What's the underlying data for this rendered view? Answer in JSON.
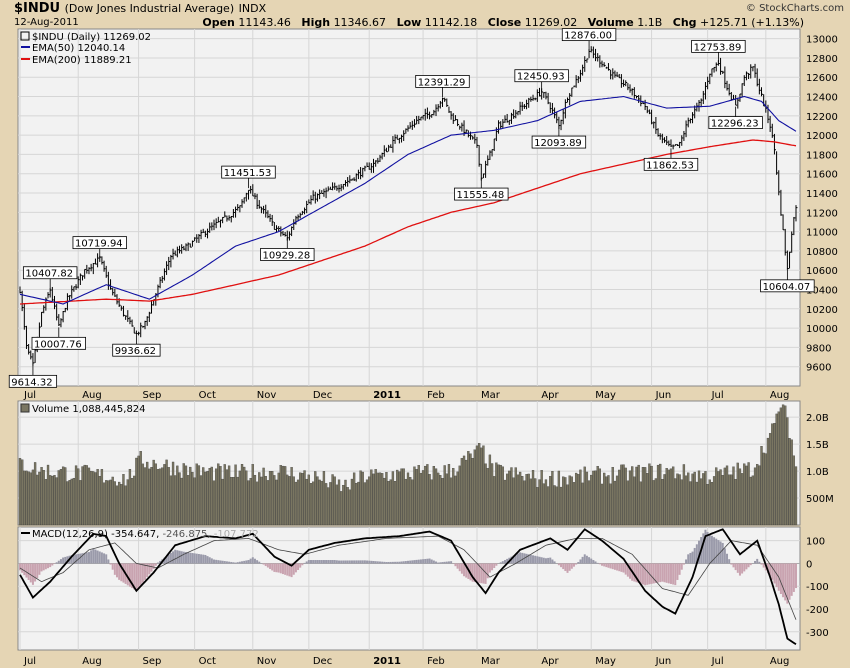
{
  "header": {
    "symbol": "$INDU",
    "name": "(Dow Jones Industrial Average)",
    "exchange": "INDX",
    "date": "12-Aug-2011",
    "brand": "© StockCharts.com",
    "open_label": "Open",
    "open": "11143.46",
    "high_label": "High",
    "high": "11346.67",
    "low_label": "Low",
    "low": "11142.18",
    "close_label": "Close",
    "close": "11269.02",
    "volume_label": "Volume",
    "volume": "1.1B",
    "chg_label": "Chg",
    "chg": "+125.71 (+1.13%)"
  },
  "colors": {
    "background": "#e5d5b4",
    "panel": "#f2f2f2",
    "ema50": "#1010a0",
    "ema200": "#e01010",
    "volume": "#7a7662",
    "macd_hist": "#c9a3b0",
    "macd_hist_pos": "#9a9aaa"
  },
  "chart_data": [
    {
      "type": "line",
      "panel": "price",
      "legend": [
        "$INDU (Daily) 11269.02",
        "EMA(50) 12040.14",
        "EMA(200) 11889.21"
      ],
      "ylim": [
        9400,
        13100
      ],
      "yticks": [
        9600,
        9800,
        10000,
        10200,
        10400,
        10600,
        10800,
        11000,
        11200,
        11400,
        11600,
        11800,
        12000,
        12200,
        12400,
        12600,
        12800,
        13000
      ],
      "xticks": [
        "Jul",
        "Aug",
        "Sep",
        "Oct",
        "Nov",
        "Dec",
        "2011",
        "Feb",
        "Mar",
        "Apr",
        "May",
        "Jun",
        "Jul",
        "Aug"
      ],
      "price_anchors": [
        [
          0,
          10400
        ],
        [
          3,
          9800
        ],
        [
          6,
          9614
        ],
        [
          10,
          10150
        ],
        [
          14,
          10400
        ],
        [
          18,
          10008
        ],
        [
          22,
          10300
        ],
        [
          30,
          10600
        ],
        [
          37,
          10720
        ],
        [
          42,
          10400
        ],
        [
          48,
          10150
        ],
        [
          54,
          9937
        ],
        [
          58,
          10050
        ],
        [
          62,
          10300
        ],
        [
          70,
          10750
        ],
        [
          78,
          10850
        ],
        [
          86,
          11000
        ],
        [
          96,
          11150
        ],
        [
          102,
          11250
        ],
        [
          106,
          11451
        ],
        [
          110,
          11300
        ],
        [
          118,
          11050
        ],
        [
          124,
          10929
        ],
        [
          128,
          11150
        ],
        [
          136,
          11350
        ],
        [
          146,
          11450
        ],
        [
          154,
          11550
        ],
        [
          164,
          11700
        ],
        [
          174,
          11950
        ],
        [
          184,
          12150
        ],
        [
          192,
          12250
        ],
        [
          196,
          12391
        ],
        [
          200,
          12200
        ],
        [
          206,
          12050
        ],
        [
          212,
          11900
        ],
        [
          214,
          11555
        ],
        [
          218,
          11800
        ],
        [
          222,
          12100
        ],
        [
          228,
          12200
        ],
        [
          236,
          12350
        ],
        [
          242,
          12450
        ],
        [
          246,
          12300
        ],
        [
          250,
          12094
        ],
        [
          254,
          12400
        ],
        [
          260,
          12650
        ],
        [
          264,
          12876
        ],
        [
          270,
          12750
        ],
        [
          276,
          12600
        ],
        [
          282,
          12500
        ],
        [
          290,
          12300
        ],
        [
          296,
          12000
        ],
        [
          302,
          11863
        ],
        [
          306,
          11900
        ],
        [
          310,
          12150
        ],
        [
          316,
          12350
        ],
        [
          320,
          12650
        ],
        [
          324,
          12754
        ],
        [
          328,
          12500
        ],
        [
          332,
          12296
        ],
        [
          336,
          12600
        ],
        [
          340,
          12700
        ],
        [
          344,
          12400
        ],
        [
          348,
          12100
        ],
        [
          350,
          11850
        ],
        [
          352,
          11400
        ],
        [
          354,
          11000
        ],
        [
          356,
          10604
        ],
        [
          358,
          11000
        ],
        [
          360,
          11269
        ]
      ],
      "ema50_anchors": [
        [
          0,
          10350
        ],
        [
          20,
          10250
        ],
        [
          40,
          10450
        ],
        [
          60,
          10300
        ],
        [
          80,
          10550
        ],
        [
          100,
          10850
        ],
        [
          120,
          11000
        ],
        [
          140,
          11250
        ],
        [
          160,
          11500
        ],
        [
          180,
          11800
        ],
        [
          200,
          12000
        ],
        [
          220,
          12050
        ],
        [
          240,
          12150
        ],
        [
          260,
          12350
        ],
        [
          280,
          12400
        ],
        [
          300,
          12280
        ],
        [
          320,
          12300
        ],
        [
          336,
          12400
        ],
        [
          344,
          12350
        ],
        [
          352,
          12150
        ],
        [
          360,
          12040
        ]
      ],
      "ema200_anchors": [
        [
          0,
          10250
        ],
        [
          40,
          10300
        ],
        [
          60,
          10280
        ],
        [
          80,
          10350
        ],
        [
          100,
          10450
        ],
        [
          120,
          10550
        ],
        [
          140,
          10700
        ],
        [
          160,
          10850
        ],
        [
          180,
          11050
        ],
        [
          200,
          11200
        ],
        [
          220,
          11300
        ],
        [
          240,
          11450
        ],
        [
          260,
          11600
        ],
        [
          280,
          11700
        ],
        [
          300,
          11800
        ],
        [
          320,
          11880
        ],
        [
          340,
          11950
        ],
        [
          350,
          11930
        ],
        [
          360,
          11889
        ]
      ],
      "annotations": [
        {
          "label": "9614.32",
          "bar": 6,
          "value": 9614,
          "pos": "below"
        },
        {
          "label": "10407.82",
          "bar": 14,
          "value": 10408,
          "pos": "above"
        },
        {
          "label": "10007.76",
          "bar": 18,
          "value": 10008,
          "pos": "below"
        },
        {
          "label": "10719.94",
          "bar": 37,
          "value": 10720,
          "pos": "above"
        },
        {
          "label": "9936.62",
          "bar": 54,
          "value": 9937,
          "pos": "below"
        },
        {
          "label": "11451.53",
          "bar": 106,
          "value": 11451,
          "pos": "above"
        },
        {
          "label": "10929.28",
          "bar": 124,
          "value": 10929,
          "pos": "below"
        },
        {
          "label": "12391.29",
          "bar": 196,
          "value": 12391,
          "pos": "above"
        },
        {
          "label": "11555.48",
          "bar": 214,
          "value": 11555,
          "pos": "below"
        },
        {
          "label": "12450.93",
          "bar": 242,
          "value": 12450,
          "pos": "above"
        },
        {
          "label": "12093.89",
          "bar": 250,
          "value": 12094,
          "pos": "below"
        },
        {
          "label": "12876.00",
          "bar": 264,
          "value": 12876,
          "pos": "above"
        },
        {
          "label": "11862.53",
          "bar": 302,
          "value": 11863,
          "pos": "below"
        },
        {
          "label": "12753.89",
          "bar": 324,
          "value": 12754,
          "pos": "above"
        },
        {
          "label": "12296.23",
          "bar": 332,
          "value": 12296,
          "pos": "below"
        },
        {
          "label": "10604.07",
          "bar": 356,
          "value": 10604,
          "pos": "below"
        }
      ]
    },
    {
      "type": "bar",
      "panel": "volume",
      "legend": "Volume 1,088,445,824",
      "ylim": [
        0,
        2300000000
      ],
      "yticks": [
        "500M",
        "1.0B",
        "1.5B",
        "2.0B"
      ],
      "ytick_values": [
        500000000,
        1000000000,
        1500000000,
        2000000000
      ],
      "volume_anchors": [
        [
          0,
          1150
        ],
        [
          10,
          1000
        ],
        [
          30,
          950
        ],
        [
          50,
          850
        ],
        [
          56,
          1200
        ],
        [
          80,
          1000
        ],
        [
          100,
          950
        ],
        [
          120,
          1000
        ],
        [
          140,
          850
        ],
        [
          150,
          700
        ],
        [
          160,
          900
        ],
        [
          180,
          950
        ],
        [
          200,
          1000
        ],
        [
          214,
          1400
        ],
        [
          220,
          1000
        ],
        [
          240,
          850
        ],
        [
          260,
          900
        ],
        [
          280,
          950
        ],
        [
          300,
          1000
        ],
        [
          320,
          900
        ],
        [
          340,
          1050
        ],
        [
          350,
          1800
        ],
        [
          352,
          2200
        ],
        [
          356,
          2000
        ],
        [
          360,
          1088
        ]
      ]
    },
    {
      "type": "line",
      "panel": "macd",
      "legend": {
        "name": "MACD(12,26,9)",
        "macd": "-354.647",
        "signal": "-246.875",
        "histogram": "-107.772"
      },
      "ylim": [
        -380,
        160
      ],
      "yticks": [
        -300,
        -200,
        -100,
        0,
        100
      ],
      "macd_anchors": [
        [
          0,
          -50
        ],
        [
          6,
          -150
        ],
        [
          14,
          -80
        ],
        [
          24,
          30
        ],
        [
          34,
          130
        ],
        [
          40,
          120
        ],
        [
          46,
          0
        ],
        [
          54,
          -120
        ],
        [
          62,
          -40
        ],
        [
          72,
          80
        ],
        [
          86,
          120
        ],
        [
          100,
          110
        ],
        [
          108,
          130
        ],
        [
          118,
          30
        ],
        [
          126,
          -10
        ],
        [
          134,
          60
        ],
        [
          146,
          90
        ],
        [
          160,
          110
        ],
        [
          176,
          120
        ],
        [
          190,
          140
        ],
        [
          200,
          100
        ],
        [
          210,
          -60
        ],
        [
          216,
          -130
        ],
        [
          222,
          -40
        ],
        [
          232,
          60
        ],
        [
          246,
          110
        ],
        [
          254,
          60
        ],
        [
          262,
          150
        ],
        [
          270,
          100
        ],
        [
          280,
          20
        ],
        [
          290,
          -120
        ],
        [
          298,
          -190
        ],
        [
          304,
          -220
        ],
        [
          312,
          -60
        ],
        [
          318,
          120
        ],
        [
          326,
          150
        ],
        [
          334,
          40
        ],
        [
          342,
          100
        ],
        [
          348,
          -60
        ],
        [
          352,
          -180
        ],
        [
          356,
          -330
        ],
        [
          360,
          -355
        ]
      ],
      "signal_anchors": [
        [
          0,
          -20
        ],
        [
          10,
          -80
        ],
        [
          20,
          -40
        ],
        [
          32,
          60
        ],
        [
          44,
          90
        ],
        [
          54,
          0
        ],
        [
          64,
          -20
        ],
        [
          76,
          40
        ],
        [
          90,
          100
        ],
        [
          106,
          110
        ],
        [
          120,
          60
        ],
        [
          132,
          40
        ],
        [
          148,
          80
        ],
        [
          170,
          110
        ],
        [
          194,
          120
        ],
        [
          206,
          60
        ],
        [
          218,
          -60
        ],
        [
          230,
          0
        ],
        [
          244,
          80
        ],
        [
          258,
          110
        ],
        [
          270,
          110
        ],
        [
          284,
          40
        ],
        [
          298,
          -110
        ],
        [
          310,
          -140
        ],
        [
          320,
          0
        ],
        [
          330,
          100
        ],
        [
          342,
          80
        ],
        [
          352,
          -60
        ],
        [
          360,
          -247
        ]
      ]
    }
  ]
}
